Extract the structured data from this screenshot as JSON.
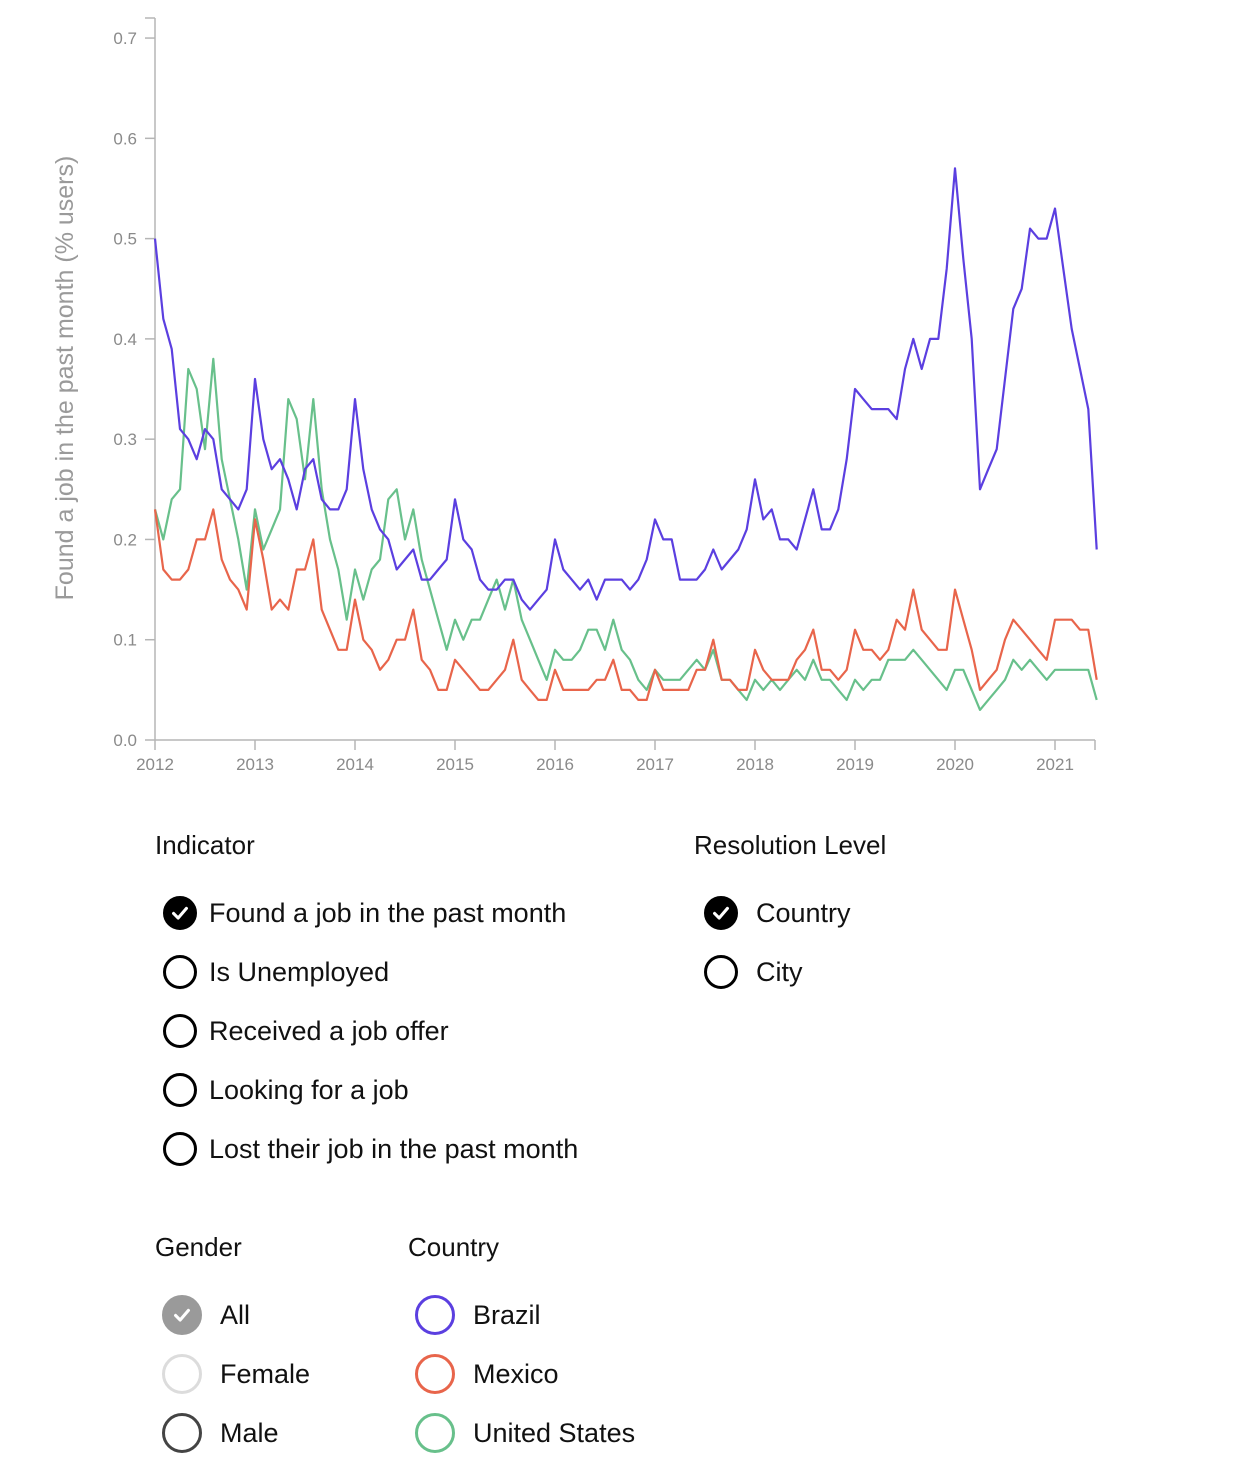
{
  "chart_data": {
    "type": "line",
    "title": "",
    "xlabel": "",
    "ylabel": "Found a job in the past month (% users)",
    "ylim": [
      0,
      0.72
    ],
    "y_ticks": [
      "0.0",
      "0.1",
      "0.2",
      "0.3",
      "0.4",
      "0.5",
      "0.6",
      "0.7"
    ],
    "x_ticks": [
      "2012",
      "2013",
      "2014",
      "2015",
      "2016",
      "2017",
      "2018",
      "2019",
      "2020",
      "2021"
    ],
    "x_start": "2012-01",
    "x_end": "2021-06",
    "grid": false,
    "series": [
      {
        "name": "Brazil",
        "color": "#5b3fe0",
        "values": [
          0.5,
          0.42,
          0.39,
          0.31,
          0.3,
          0.28,
          0.31,
          0.3,
          0.25,
          0.24,
          0.23,
          0.25,
          0.36,
          0.3,
          0.27,
          0.28,
          0.26,
          0.23,
          0.27,
          0.28,
          0.24,
          0.23,
          0.23,
          0.25,
          0.34,
          0.27,
          0.23,
          0.21,
          0.2,
          0.17,
          0.18,
          0.19,
          0.16,
          0.16,
          0.17,
          0.18,
          0.24,
          0.2,
          0.19,
          0.16,
          0.15,
          0.15,
          0.16,
          0.16,
          0.14,
          0.13,
          0.14,
          0.15,
          0.2,
          0.17,
          0.16,
          0.15,
          0.16,
          0.14,
          0.16,
          0.16,
          0.16,
          0.15,
          0.16,
          0.18,
          0.22,
          0.2,
          0.2,
          0.16,
          0.16,
          0.16,
          0.17,
          0.19,
          0.17,
          0.18,
          0.19,
          0.21,
          0.26,
          0.22,
          0.23,
          0.2,
          0.2,
          0.19,
          0.22,
          0.25,
          0.21,
          0.21,
          0.23,
          0.28,
          0.35,
          0.34,
          0.33,
          0.33,
          0.33,
          0.32,
          0.37,
          0.4,
          0.37,
          0.4,
          0.4,
          0.47,
          0.57,
          0.48,
          0.4,
          0.25,
          0.27,
          0.29,
          0.36,
          0.43,
          0.45,
          0.51,
          0.5,
          0.5,
          0.53,
          0.47,
          0.41,
          0.37,
          0.33,
          0.19
        ]
      },
      {
        "name": "Mexico",
        "color": "#e8654b",
        "values": [
          0.23,
          0.17,
          0.16,
          0.16,
          0.17,
          0.2,
          0.2,
          0.23,
          0.18,
          0.16,
          0.15,
          0.13,
          0.22,
          0.18,
          0.13,
          0.14,
          0.13,
          0.17,
          0.17,
          0.2,
          0.13,
          0.11,
          0.09,
          0.09,
          0.14,
          0.1,
          0.09,
          0.07,
          0.08,
          0.1,
          0.1,
          0.13,
          0.08,
          0.07,
          0.05,
          0.05,
          0.08,
          0.07,
          0.06,
          0.05,
          0.05,
          0.06,
          0.07,
          0.1,
          0.06,
          0.05,
          0.04,
          0.04,
          0.07,
          0.05,
          0.05,
          0.05,
          0.05,
          0.06,
          0.06,
          0.08,
          0.05,
          0.05,
          0.04,
          0.04,
          0.07,
          0.05,
          0.05,
          0.05,
          0.05,
          0.07,
          0.07,
          0.1,
          0.06,
          0.06,
          0.05,
          0.05,
          0.09,
          0.07,
          0.06,
          0.06,
          0.06,
          0.08,
          0.09,
          0.11,
          0.07,
          0.07,
          0.06,
          0.07,
          0.11,
          0.09,
          0.09,
          0.08,
          0.09,
          0.12,
          0.11,
          0.15,
          0.11,
          0.1,
          0.09,
          0.09,
          0.15,
          0.12,
          0.09,
          0.05,
          0.06,
          0.07,
          0.1,
          0.12,
          0.11,
          0.1,
          0.09,
          0.08,
          0.12,
          0.12,
          0.12,
          0.11,
          0.11,
          0.06
        ]
      },
      {
        "name": "United States",
        "color": "#68c08b",
        "values": [
          0.23,
          0.2,
          0.24,
          0.25,
          0.37,
          0.35,
          0.29,
          0.38,
          0.28,
          0.24,
          0.2,
          0.15,
          0.23,
          0.19,
          0.21,
          0.23,
          0.34,
          0.32,
          0.26,
          0.34,
          0.25,
          0.2,
          0.17,
          0.12,
          0.17,
          0.14,
          0.17,
          0.18,
          0.24,
          0.25,
          0.2,
          0.23,
          0.18,
          0.15,
          0.12,
          0.09,
          0.12,
          0.1,
          0.12,
          0.12,
          0.14,
          0.16,
          0.13,
          0.16,
          0.12,
          0.1,
          0.08,
          0.06,
          0.09,
          0.08,
          0.08,
          0.09,
          0.11,
          0.11,
          0.09,
          0.12,
          0.09,
          0.08,
          0.06,
          0.05,
          0.07,
          0.06,
          0.06,
          0.06,
          0.07,
          0.08,
          0.07,
          0.09,
          0.06,
          0.06,
          0.05,
          0.04,
          0.06,
          0.05,
          0.06,
          0.05,
          0.06,
          0.07,
          0.06,
          0.08,
          0.06,
          0.06,
          0.05,
          0.04,
          0.06,
          0.05,
          0.06,
          0.06,
          0.08,
          0.08,
          0.08,
          0.09,
          0.08,
          0.07,
          0.06,
          0.05,
          0.07,
          0.07,
          0.05,
          0.03,
          0.04,
          0.05,
          0.06,
          0.08,
          0.07,
          0.08,
          0.07,
          0.06,
          0.07,
          0.07,
          0.07,
          0.07,
          0.07,
          0.04
        ]
      }
    ]
  },
  "filters": {
    "indicator": {
      "title": "Indicator",
      "options": [
        {
          "label": "Found a job in the past month",
          "checked": true
        },
        {
          "label": "Is Unemployed",
          "checked": false
        },
        {
          "label": "Received a job offer",
          "checked": false
        },
        {
          "label": "Looking for a job",
          "checked": false
        },
        {
          "label": "Lost their job in the past month",
          "checked": false
        }
      ]
    },
    "resolution": {
      "title": "Resolution Level",
      "options": [
        {
          "label": "Country",
          "checked": true
        },
        {
          "label": "City",
          "checked": false
        }
      ]
    },
    "gender": {
      "title": "Gender",
      "options": [
        {
          "label": "All",
          "checked": true,
          "color": "#9a9a9a"
        },
        {
          "label": "Female",
          "checked": false,
          "color": "#dcdcdc"
        },
        {
          "label": "Male",
          "checked": false,
          "color": "#444444"
        }
      ]
    },
    "country": {
      "title": "Country",
      "options": [
        {
          "label": "Brazil",
          "checked": false,
          "color": "#5b3fe0"
        },
        {
          "label": "Mexico",
          "checked": false,
          "color": "#e8654b"
        },
        {
          "label": "United States",
          "checked": false,
          "color": "#68c08b"
        }
      ]
    }
  }
}
